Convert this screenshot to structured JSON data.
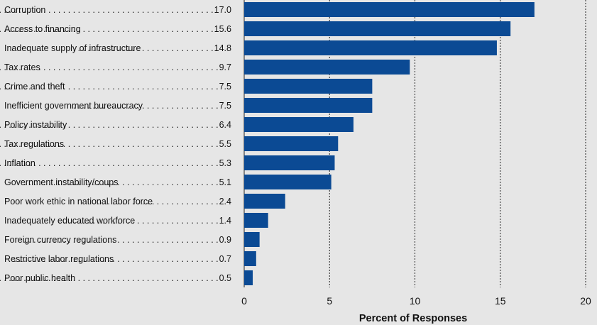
{
  "chart_data": {
    "type": "bar",
    "orientation": "horizontal",
    "categories": [
      "Corruption",
      "Access to financing",
      "Inadequate supply of infrastructure",
      "Tax rates",
      "Crime and theft",
      "Inefficient government bureaucracy",
      "Policy instability",
      "Tax regulations",
      "Inflation",
      "Government instability/coups",
      "Poor work ethic in national labor force",
      "Inadequately educated workforce",
      "Foreign currency regulations",
      "Restrictive labor regulations",
      "Poor public health"
    ],
    "values": [
      17.0,
      15.6,
      14.8,
      9.7,
      7.5,
      7.5,
      6.4,
      5.5,
      5.3,
      5.1,
      2.4,
      1.4,
      0.9,
      0.7,
      0.5
    ],
    "value_labels": [
      "17.0",
      "15.6",
      "14.8",
      "9.7",
      "7.5",
      "7.5",
      "6.4",
      "5.5",
      "5.3",
      "5.1",
      "2.4",
      "1.4",
      "0.9",
      "0.7",
      "0.5"
    ],
    "xlabel": "Percent of Responses",
    "xlim": [
      0,
      20
    ],
    "xticks": [
      0,
      5,
      10,
      15,
      20
    ],
    "tick_labels": [
      "0",
      "5",
      "10",
      "15",
      "20"
    ],
    "grid": true,
    "bar_color": "#0b4a94",
    "background_color": "#e6e6e6"
  }
}
